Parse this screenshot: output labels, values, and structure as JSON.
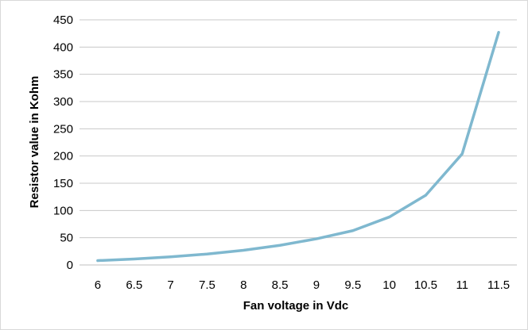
{
  "chart_data": {
    "type": "line",
    "title": "",
    "xlabel": "Fan voltage in Vdc",
    "ylabel": "Resistor value in Kohm",
    "categories": [
      "6",
      "6.5",
      "7",
      "7.5",
      "8",
      "8.5",
      "9",
      "9.5",
      "10",
      "10.5",
      "11",
      "11.5"
    ],
    "series": [
      {
        "values": [
          8,
          11,
          15,
          20,
          27,
          36,
          48,
          63,
          88,
          128,
          204,
          427
        ]
      }
    ],
    "ylim": [
      0,
      450
    ],
    "yticks": [
      "0",
      "50",
      "100",
      "150",
      "200",
      "250",
      "300",
      "350",
      "400",
      "450"
    ],
    "grid": "horizontal",
    "legend": "none",
    "colors": {
      "line": "#7fb8cf",
      "grid": "#c8c8c8",
      "axis": "#bfbfbf"
    }
  }
}
